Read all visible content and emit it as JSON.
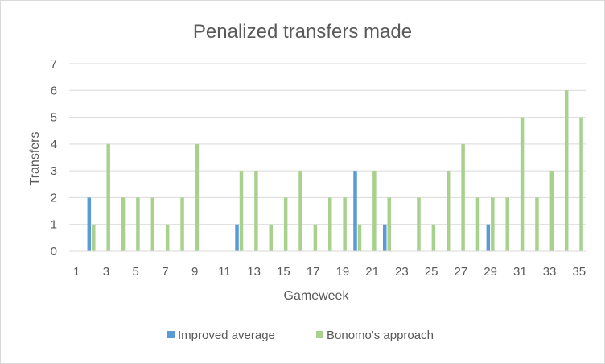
{
  "chart_data": {
    "type": "bar",
    "title": "Penalized transfers made",
    "xlabel": "Gameweek",
    "ylabel": "Transfers",
    "ylim": [
      0,
      7
    ],
    "yticks": [
      "0",
      "1",
      "2",
      "3",
      "4",
      "5",
      "6",
      "7"
    ],
    "xtick_labels": [
      "1",
      "3",
      "5",
      "7",
      "9",
      "11",
      "13",
      "15",
      "17",
      "19",
      "21",
      "23",
      "25",
      "27",
      "29",
      "31",
      "33",
      "35"
    ],
    "categories": [
      1,
      2,
      3,
      4,
      5,
      6,
      7,
      8,
      9,
      10,
      11,
      12,
      13,
      14,
      15,
      16,
      17,
      18,
      19,
      20,
      21,
      22,
      23,
      24,
      25,
      26,
      27,
      28,
      29,
      30,
      31,
      32,
      33,
      34,
      35
    ],
    "grid": true,
    "legend_position": "bottom",
    "series": [
      {
        "name": "Improved average",
        "color": "#5b9bd5",
        "values": [
          0,
          2,
          0,
          0,
          0,
          0,
          0,
          0,
          0,
          0,
          0,
          1,
          0,
          0,
          0,
          0,
          0,
          0,
          0,
          3,
          0,
          1,
          0,
          0,
          0,
          0,
          0,
          0,
          1,
          0,
          0,
          0,
          0,
          0,
          0
        ]
      },
      {
        "name": "Bonomo's approach",
        "color": "#a9d18e",
        "values": [
          0,
          1,
          4,
          2,
          2,
          2,
          1,
          2,
          4,
          0,
          0,
          3,
          3,
          1,
          2,
          3,
          1,
          2,
          2,
          1,
          3,
          2,
          0,
          2,
          1,
          3,
          4,
          2,
          2,
          2,
          5,
          2,
          3,
          6,
          5
        ]
      }
    ]
  }
}
